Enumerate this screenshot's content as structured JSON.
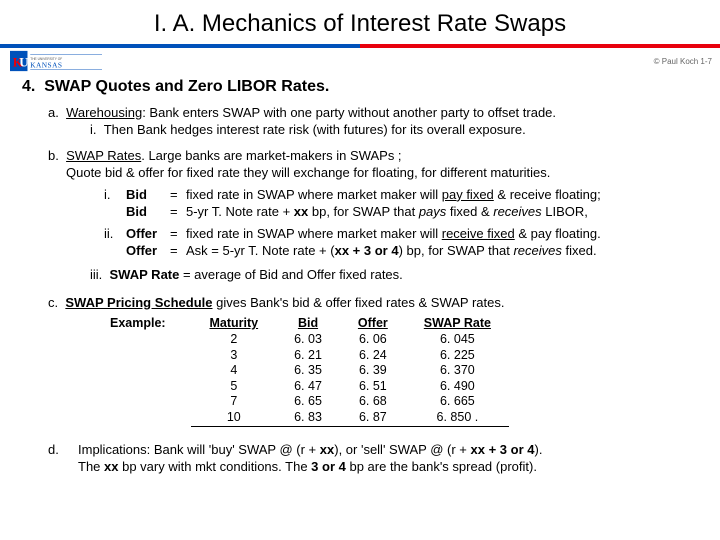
{
  "title": "I. A.  Mechanics of Interest Rate Swaps",
  "copyright": "© Paul Koch 1-7",
  "divider": {
    "left_color": "#0051ba",
    "right_color": "#e8000d"
  },
  "section": {
    "num": "4.",
    "heading": "SWAP Quotes  and  Zero LIBOR Rates.",
    "a": {
      "label": "a.",
      "term": "Warehousing",
      "text": ":  Bank enters SWAP with one party without another party to offset trade.",
      "i_label": "i.",
      "i_text": "Then Bank hedges interest rate risk (with futures) for its overall exposure."
    },
    "b": {
      "label": "b.",
      "term": "SWAP Rates",
      "text1": ".  Large banks are  market-makers  in SWAPs ;",
      "text2": "Quote  bid & offer   for  fixed rate  they will exchange for floating, for different maturities.",
      "lines": [
        {
          "num": "i.",
          "label": "Bid",
          "eq": "=",
          "text_a": "fixed rate in SWAP where market maker will ",
          "key": "pay fixed",
          "text_b": " & receive floating;"
        },
        {
          "num": "",
          "label": "Bid",
          "eq": "=",
          "text_a": "5-yr T. Note rate  +  ",
          "key": "xx",
          "text_b": " bp,  for SWAP that  ",
          "ital1": "pays",
          "mid": " fixed & ",
          "ital2": "receives",
          "tail": " LIBOR,"
        },
        {
          "num": "ii.",
          "label": "Offer",
          "eq": "=",
          "text_a": "fixed rate in SWAP where market maker will ",
          "key": "receive fixed",
          "text_b": " & pay floating."
        },
        {
          "num": "",
          "label": "Offer",
          "eq": "=",
          "text_a": "Ask  =  5-yr T. Note rate  + (",
          "key": "xx",
          "plus": " + ",
          "key2": "3 or 4",
          "text_b": ") bp, for SWAP that ",
          "ital1": "receives",
          "tail": " fixed."
        }
      ],
      "iii_label": "iii.",
      "iii_term": "SWAP Rate",
      "iii_text": "  =  average of  Bid  and  Offer  fixed rates."
    },
    "c": {
      "label": "c.",
      "term": "SWAP Pricing Schedule",
      "text": "  gives Bank's  bid & offer  fixed rates  &  SWAP rates.",
      "example_label": "Example:",
      "headers": [
        "Maturity",
        "Bid",
        "Offer",
        "SWAP Rate"
      ],
      "rows": [
        [
          "2",
          "6. 03",
          "6. 06",
          "6. 045"
        ],
        [
          "3",
          "6. 21",
          "6. 24",
          "6. 225"
        ],
        [
          "4",
          "6. 35",
          "6. 39",
          "6. 370"
        ],
        [
          "5",
          "6. 47",
          "6. 51",
          "6. 490"
        ],
        [
          "7",
          "6. 65",
          "6. 68",
          "6. 665"
        ],
        [
          "10",
          "6. 83",
          "6. 87",
          "6. 850     ."
        ]
      ]
    },
    "d": {
      "label": "d.",
      "line1_a": "Implications:  Bank will  'buy' SWAP @  (r + ",
      "xx1": "xx",
      "line1_b": "),  or  'sell' SWAP @  (r + ",
      "xx2": "xx",
      "plus": " + ",
      "three4": "3 or 4",
      "line1_c": ").",
      "line2_a": "The  ",
      "xx3": "xx",
      "line2_b": "  bp vary with mkt conditions.   The  ",
      "three4b": "3 or 4",
      "line2_c": "  bp  are the bank's spread  (profit)."
    }
  }
}
